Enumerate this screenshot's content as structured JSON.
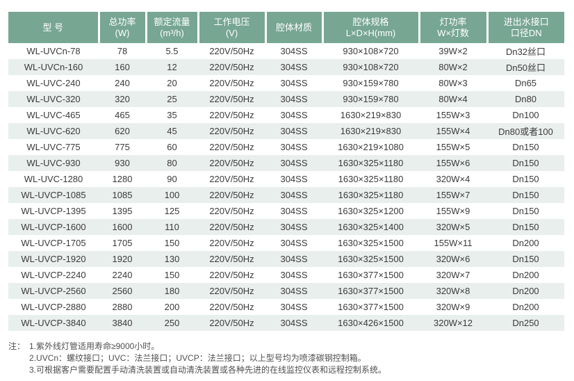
{
  "colors": {
    "header_bg": "#77a693",
    "header_text": "#ffffff",
    "alt_row_bg": "#e9efec",
    "body_text": "#3a3a3a"
  },
  "table": {
    "columns": [
      {
        "line1": "型 号",
        "line2": ""
      },
      {
        "line1": "总功率",
        "line2": "(W)"
      },
      {
        "line1": "额定流量",
        "line2": "(m³/h)"
      },
      {
        "line1": "工作电压",
        "line2": "(V)"
      },
      {
        "line1": "腔体材质",
        "line2": ""
      },
      {
        "line1": "腔体规格",
        "line2": "L×D×H(mm)"
      },
      {
        "line1": "灯功率",
        "line2": "W×灯数"
      },
      {
        "line1": "进出水接口",
        "line2": "口径DN"
      }
    ],
    "rows": [
      [
        "WL-UVCn-78",
        "78",
        "5.5",
        "220V/50Hz",
        "304SS",
        "930×108×720",
        "39W×2",
        "Dn32丝口"
      ],
      [
        "WL-UVCn-160",
        "160",
        "12",
        "220V/50Hz",
        "304SS",
        "930×108×720",
        "80W×2",
        "Dn50丝口"
      ],
      [
        "WL-UVC-240",
        "240",
        "20",
        "220V/50Hz",
        "304SS",
        "930×159×780",
        "80W×3",
        "Dn65"
      ],
      [
        "WL-UVC-320",
        "320",
        "25",
        "220V/50Hz",
        "304SS",
        "930×159×780",
        "80W×4",
        "Dn80"
      ],
      [
        "WL-UVC-465",
        "465",
        "35",
        "220V/50Hz",
        "304SS",
        "1630×219×830",
        "155W×3",
        "Dn100"
      ],
      [
        "WL-UVC-620",
        "620",
        "45",
        "220V/50Hz",
        "304SS",
        "1630×219×830",
        "155W×4",
        "Dn80或者100"
      ],
      [
        "WL-UVC-775",
        "775",
        "60",
        "220V/50Hz",
        "304SS",
        "1630×219×1080",
        "155W×5",
        "Dn150"
      ],
      [
        "WL-UVC-930",
        "930",
        "80",
        "220V/50Hz",
        "304SS",
        "1630×325×1180",
        "155W×6",
        "Dn150"
      ],
      [
        "WL-UVC-1280",
        "1280",
        "90",
        "220V/50Hz",
        "304SS",
        "1630×325×1180",
        "320W×4",
        "Dn150"
      ],
      [
        "WL-UVCP-1085",
        "1085",
        "100",
        "220V/50Hz",
        "304SS",
        "1630×325×1180",
        "155W×7",
        "Dn150"
      ],
      [
        "WL-UVCP-1395",
        "1395",
        "125",
        "220V/50Hz",
        "304SS",
        "1630×325×1200",
        "155W×9",
        "Dn150"
      ],
      [
        "WL-UVCP-1600",
        "1600",
        "110",
        "220V/50Hz",
        "304SS",
        "1630×325×1400",
        "320W×5",
        "Dn150"
      ],
      [
        "WL-UVCP-1705",
        "1705",
        "150",
        "220V/50Hz",
        "304SS",
        "1630×325×1500",
        "155W×11",
        "Dn200"
      ],
      [
        "WL-UVCP-1920",
        "1920",
        "130",
        "220V/50Hz",
        "304SS",
        "1630×325×1500",
        "320W×6",
        "Dn150"
      ],
      [
        "WL-UVCP-2240",
        "2240",
        "150",
        "220V/50Hz",
        "304SS",
        "1630×377×1500",
        "320W×7",
        "Dn200"
      ],
      [
        "WL-UVCP-2560",
        "2560",
        "180",
        "220V/50Hz",
        "304SS",
        "1630×377×1500",
        "320W×8",
        "Dn200"
      ],
      [
        "WL-UVCP-2880",
        "2880",
        "200",
        "220V/50Hz",
        "304SS",
        "1630×377×1500",
        "320W×9",
        "Dn200"
      ],
      [
        "WL-UVCP-3840",
        "3840",
        "250",
        "220V/50Hz",
        "304SS",
        "1630×426×1500",
        "320W×12",
        "Dn250"
      ]
    ]
  },
  "notes": {
    "label": "注：",
    "lines": [
      "1.紫外线灯管适用寿命≥9000小时。",
      "2.UVCn：螺纹接口；UVC：法兰接口；UVCP：法兰接口；以上型号均为喷漆碳钢控制箱。",
      "3.可根据客户需要配置手动清洗装置或自动清洗装置或各种先进的在线监控仪表和远程控制系统。"
    ]
  }
}
